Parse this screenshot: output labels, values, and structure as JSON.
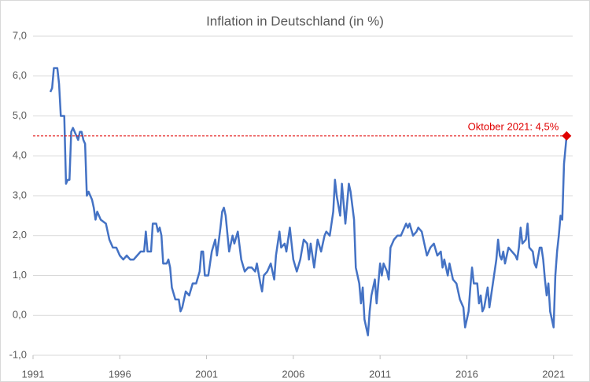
{
  "chart_data": {
    "type": "line",
    "title": "Inflation in Deutschland (in %)",
    "x": [
      1992.0,
      1992.1,
      1992.2,
      1992.4,
      1992.5,
      1992.6,
      1992.8,
      1992.9,
      1993.0,
      1993.1,
      1993.2,
      1993.3,
      1993.5,
      1993.6,
      1993.7,
      1993.8,
      1993.9,
      1994.0,
      1994.1,
      1994.2,
      1994.4,
      1994.5,
      1994.6,
      1994.7,
      1994.9,
      1995.2,
      1995.4,
      1995.6,
      1995.8,
      1996.0,
      1996.2,
      1996.4,
      1996.6,
      1996.8,
      1997.0,
      1997.2,
      1997.4,
      1997.5,
      1997.6,
      1997.8,
      1997.9,
      1998.1,
      1998.2,
      1998.3,
      1998.4,
      1998.5,
      1998.7,
      1998.8,
      1998.9,
      1999.0,
      1999.2,
      1999.4,
      1999.5,
      1999.6,
      1999.8,
      2000.0,
      2000.2,
      2000.4,
      2000.6,
      2000.7,
      2000.8,
      2000.9,
      2001.1,
      2001.3,
      2001.5,
      2001.6,
      2001.8,
      2001.9,
      2002.0,
      2002.1,
      2002.3,
      2002.5,
      2002.6,
      2002.8,
      2003.0,
      2003.2,
      2003.4,
      2003.6,
      2003.8,
      2003.9,
      2004.1,
      2004.2,
      2004.3,
      2004.5,
      2004.7,
      2004.9,
      2005.0,
      2005.2,
      2005.3,
      2005.5,
      2005.6,
      2005.8,
      2005.9,
      2006.0,
      2006.2,
      2006.4,
      2006.6,
      2006.8,
      2006.9,
      2007.0,
      2007.2,
      2007.4,
      2007.6,
      2007.8,
      2007.9,
      2008.1,
      2008.3,
      2008.4,
      2008.5,
      2008.7,
      2008.8,
      2008.9,
      2009.0,
      2009.2,
      2009.3,
      2009.5,
      2009.6,
      2009.8,
      2009.9,
      2010.0,
      2010.1,
      2010.3,
      2010.4,
      2010.5,
      2010.7,
      2010.8,
      2011.0,
      2011.1,
      2011.2,
      2011.4,
      2011.5,
      2011.6,
      2011.8,
      2012.0,
      2012.2,
      2012.3,
      2012.5,
      2012.6,
      2012.7,
      2012.9,
      2013.1,
      2013.2,
      2013.4,
      2013.6,
      2013.7,
      2013.9,
      2014.1,
      2014.3,
      2014.5,
      2014.6,
      2014.7,
      2014.9,
      2015.0,
      2015.2,
      2015.4,
      2015.6,
      2015.8,
      2015.9,
      2016.1,
      2016.2,
      2016.3,
      2016.4,
      2016.6,
      2016.7,
      2016.8,
      2016.9,
      2017.0,
      2017.2,
      2017.3,
      2017.5,
      2017.7,
      2017.8,
      2017.9,
      2018.0,
      2018.1,
      2018.2,
      2018.4,
      2018.6,
      2018.8,
      2018.9,
      2019.0,
      2019.1,
      2019.2,
      2019.4,
      2019.5,
      2019.6,
      2019.8,
      2019.9,
      2020.0,
      2020.2,
      2020.3,
      2020.4,
      2020.5,
      2020.6,
      2020.7,
      2020.8,
      2020.9,
      2021.0,
      2021.1,
      2021.2,
      2021.3,
      2021.4,
      2021.5,
      2021.6,
      2021.75
    ],
    "series": [
      {
        "name": "Inflation",
        "color": "#4472c4",
        "values": [
          5.6,
          5.7,
          6.2,
          6.2,
          5.8,
          5.0,
          5.0,
          3.3,
          3.4,
          3.4,
          4.6,
          4.7,
          4.5,
          4.4,
          4.6,
          4.6,
          4.4,
          4.3,
          3.0,
          3.1,
          2.9,
          2.7,
          2.4,
          2.6,
          2.4,
          2.3,
          1.9,
          1.7,
          1.7,
          1.5,
          1.4,
          1.5,
          1.4,
          1.4,
          1.5,
          1.6,
          1.6,
          2.1,
          1.6,
          1.6,
          2.3,
          2.3,
          2.1,
          2.2,
          2.0,
          1.3,
          1.3,
          1.4,
          1.2,
          0.7,
          0.4,
          0.4,
          0.1,
          0.2,
          0.6,
          0.5,
          0.8,
          0.8,
          1.1,
          1.6,
          1.6,
          1.0,
          1.0,
          1.6,
          1.9,
          1.5,
          2.2,
          2.6,
          2.7,
          2.5,
          1.6,
          2.0,
          1.8,
          2.1,
          1.4,
          1.1,
          1.2,
          1.2,
          1.1,
          1.3,
          0.8,
          0.6,
          1.0,
          1.1,
          1.3,
          0.9,
          1.5,
          2.1,
          1.7,
          1.8,
          1.6,
          2.2,
          1.8,
          1.4,
          1.1,
          1.4,
          1.9,
          1.8,
          1.4,
          1.8,
          1.2,
          1.9,
          1.6,
          2.0,
          2.1,
          2.0,
          2.6,
          3.4,
          3.0,
          2.5,
          3.3,
          2.8,
          2.3,
          3.3,
          3.1,
          2.4,
          1.2,
          0.8,
          0.3,
          0.7,
          -0.1,
          -0.5,
          0.1,
          0.5,
          0.9,
          0.3,
          1.3,
          1.0,
          1.3,
          1.1,
          0.9,
          1.7,
          1.9,
          2.0,
          2.0,
          2.1,
          2.3,
          2.2,
          2.3,
          2.0,
          2.1,
          2.2,
          2.1,
          1.7,
          1.5,
          1.7,
          1.8,
          1.5,
          1.6,
          1.2,
          1.4,
          1.0,
          1.3,
          0.9,
          0.8,
          0.4,
          0.2,
          -0.3,
          0.1,
          0.7,
          1.2,
          0.8,
          0.8,
          0.3,
          0.5,
          0.1,
          0.2,
          0.7,
          0.2,
          0.8,
          1.4,
          1.9,
          1.5,
          1.4,
          1.6,
          1.3,
          1.7,
          1.6,
          1.5,
          1.4,
          1.7,
          2.2,
          1.8,
          1.9,
          2.3,
          1.7,
          1.6,
          1.3,
          1.2,
          1.7,
          1.7,
          1.4,
          0.9,
          0.5,
          0.8,
          0.1,
          -0.1,
          -0.3,
          1.0,
          1.6,
          2.0,
          2.5,
          2.4,
          3.8,
          4.5
        ]
      }
    ],
    "xlim": [
      1991,
      2022.1
    ],
    "xticks": [
      1991,
      1996,
      2001,
      2006,
      2011,
      2016,
      2021
    ],
    "ylim": [
      -1,
      7
    ],
    "yticks": [
      {
        "value": -1,
        "label": "-1,0"
      },
      {
        "value": 0,
        "label": "0,0"
      },
      {
        "value": 1,
        "label": "1,0"
      },
      {
        "value": 2,
        "label": "2,0"
      },
      {
        "value": 3,
        "label": "3,0"
      },
      {
        "value": 4,
        "label": "4,0"
      },
      {
        "value": 5,
        "label": "5,0"
      },
      {
        "value": 6,
        "label": "6,0"
      },
      {
        "value": 7,
        "label": "7,0"
      }
    ],
    "grid": true,
    "annotations": [
      {
        "text": "Oktober 2021: 4,5%",
        "x": 2021.75,
        "y": 4.5,
        "color": "#e00000"
      }
    ]
  }
}
